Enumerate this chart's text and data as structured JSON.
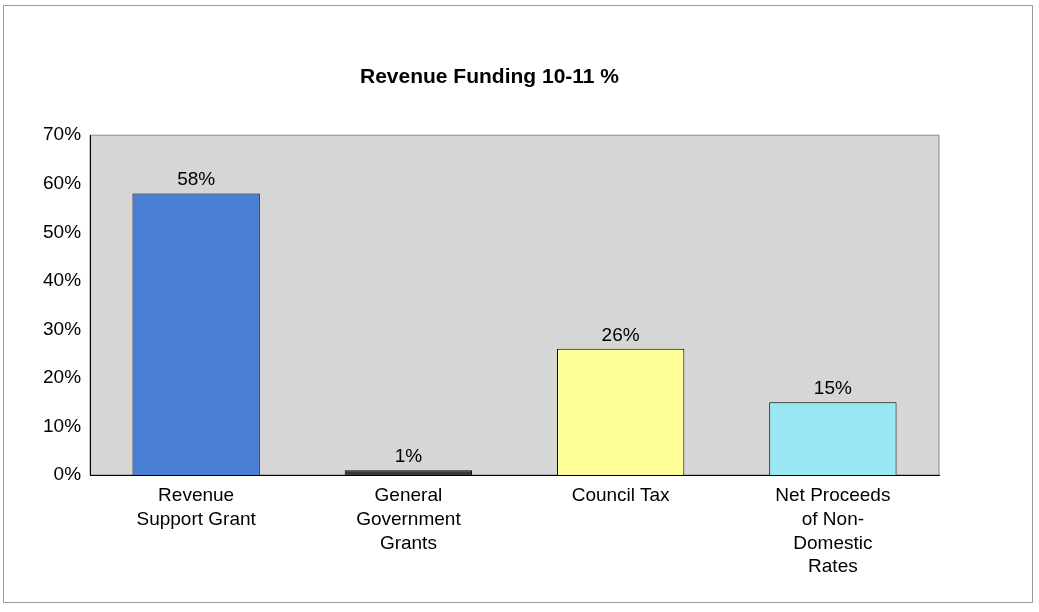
{
  "chart_data": {
    "type": "bar",
    "title": "Revenue Funding 10-11 %",
    "categories": [
      "Revenue Support Grant",
      "General Government Grants",
      "Council Tax",
      "Net Proceeds of Non-Domestic Rates"
    ],
    "values": [
      58,
      1,
      26,
      15
    ],
    "colors": [
      "#4a7fd6",
      "#3a3a3a",
      "#ffff99",
      "#99e6f5"
    ],
    "value_labels": [
      "58%",
      "1%",
      "26%",
      "15%"
    ],
    "ylim": [
      0,
      70
    ],
    "yticks": [
      {
        "value": 0,
        "label": "0%"
      },
      {
        "value": 10,
        "label": "10%"
      },
      {
        "value": 20,
        "label": "20%"
      },
      {
        "value": 30,
        "label": "30%"
      },
      {
        "value": 40,
        "label": "40%"
      },
      {
        "value": 50,
        "label": "50%"
      },
      {
        "value": 60,
        "label": "60%"
      },
      {
        "value": 70,
        "label": "70%"
      }
    ],
    "grid": false,
    "legend": false
  }
}
